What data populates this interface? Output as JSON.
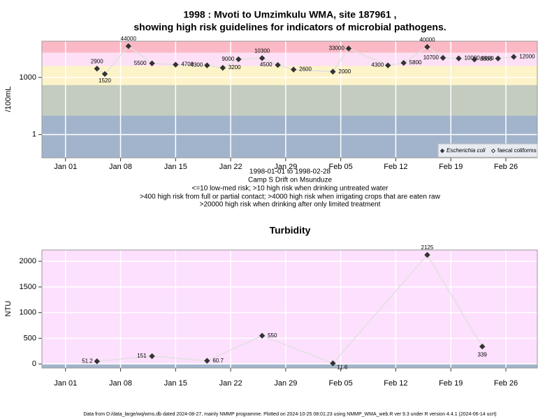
{
  "chart_data": [
    {
      "type": "line",
      "title": "1998 : Mvoti to Umzimkulu WMA, site 187961 ,",
      "subtitle": "showing high risk guidelines for indicators of microbial pathogens.",
      "ylabel": "/100mL",
      "log_scale": true,
      "annotations": [
        "1998-01-01 to 1998-02-28",
        "Camp S Drift on Msunduze",
        "<=10 low-med risk; >10 high risk when drinking untreated water",
        ">400 high risk from full or partial contact; >4000 high risk when irrigating crops that are eaten raw",
        ">20000 high risk when drinking after only limited treatment"
      ],
      "x": [
        "1998-01-05",
        "1998-01-06",
        "1998-01-09",
        "1998-01-12",
        "1998-01-15",
        "1998-01-19",
        "1998-01-21",
        "1998-01-23",
        "1998-01-26",
        "1998-01-28",
        "1998-01-30",
        "1998-02-04",
        "1998-02-06",
        "1998-02-11",
        "1998-02-13",
        "1998-02-16",
        "1998-02-18",
        "1998-02-20",
        "1998-02-22",
        "1998-02-25",
        "1998-02-27"
      ],
      "series": [
        {
          "name": "Escherichia coli",
          "color": "#333333",
          "values": [
            2900,
            1520,
            44000,
            5500,
            4700,
            4300,
            3200,
            9000,
            10300,
            4500,
            2600,
            2000,
            33000,
            4300,
            5800,
            40000,
            10700,
            10000,
            8800,
            9900,
            12000
          ]
        },
        {
          "name": "faecal coliforms",
          "color": "#333333",
          "values": [
            null,
            null,
            null,
            null,
            null,
            null,
            null,
            null,
            null,
            null,
            null,
            null,
            null,
            null,
            null,
            null,
            null,
            null,
            null,
            null,
            null
          ]
        }
      ],
      "xlim": [
        "1997-12-29",
        "1998-03-02"
      ],
      "xticks": [
        {
          "value": "1998-01-01",
          "label": "Jan 01"
        },
        {
          "value": "1998-01-08",
          "label": "Jan 08"
        },
        {
          "value": "1998-01-15",
          "label": "Jan 15"
        },
        {
          "value": "1998-01-22",
          "label": "Jan 22"
        },
        {
          "value": "1998-01-29",
          "label": "Jan 29"
        },
        {
          "value": "1998-02-05",
          "label": "Feb 05"
        },
        {
          "value": "1998-02-12",
          "label": "Feb 12"
        },
        {
          "value": "1998-02-19",
          "label": "Feb 19"
        },
        {
          "value": "1998-02-26",
          "label": "Feb 26"
        }
      ],
      "ylim": [
        0.06,
        80000
      ],
      "yticks": [
        1,
        1000
      ],
      "grid": true,
      "legend": "bottom-right",
      "bands": [
        {
          "from": 0.06,
          "to": 10,
          "color": "#a2b4cc"
        },
        {
          "from": 10,
          "to": 400,
          "color": "#c4ccbf"
        },
        {
          "from": 400,
          "to": 4000,
          "color": "#fdf3c8"
        },
        {
          "from": 4000,
          "to": 20000,
          "color": "#fde0f5"
        },
        {
          "from": 20000,
          "to": 80000,
          "color": "#fbb9c5"
        }
      ]
    },
    {
      "type": "line",
      "title": "Turbidity",
      "ylabel": "NTU",
      "x": [
        "1998-01-05",
        "1998-01-12",
        "1998-01-19",
        "1998-01-26",
        "1998-02-04",
        "1998-02-16",
        "1998-02-23"
      ],
      "series": [
        {
          "name": "Turbidity",
          "color": "#333333",
          "values": [
            51.2,
            151,
            60.7,
            550,
            11.6,
            2125,
            339
          ]
        }
      ],
      "xlim": [
        "1997-12-29",
        "1998-03-02"
      ],
      "xticks": [
        {
          "value": "1998-01-01",
          "label": "Jan 01"
        },
        {
          "value": "1998-01-08",
          "label": "Jan 08"
        },
        {
          "value": "1998-01-15",
          "label": "Jan 15"
        },
        {
          "value": "1998-01-22",
          "label": "Jan 22"
        },
        {
          "value": "1998-01-29",
          "label": "Jan 29"
        },
        {
          "value": "1998-02-05",
          "label": "Feb 05"
        },
        {
          "value": "1998-02-12",
          "label": "Feb 12"
        },
        {
          "value": "1998-02-19",
          "label": "Feb 19"
        },
        {
          "value": "1998-02-26",
          "label": "Feb 26"
        }
      ],
      "ylim": [
        -80,
        2220
      ],
      "yticks": [
        0,
        500,
        1000,
        1500,
        2000
      ],
      "grid": true,
      "bands": [
        {
          "from": -80,
          "to": 5,
          "color": "#a2b4cc"
        },
        {
          "from": 5,
          "to": 2220,
          "color": "#fde0fd"
        }
      ]
    }
  ],
  "footer": "Data from D:/data_large/wq/wms.db dated 2024-08-27, mainly NMMP programme. Plotted on 2024-10-25 08:01:23 using NMMP_WMA_web.R ver 9.3 under R version 4.4.1 (2024-06-14 ucrt)"
}
